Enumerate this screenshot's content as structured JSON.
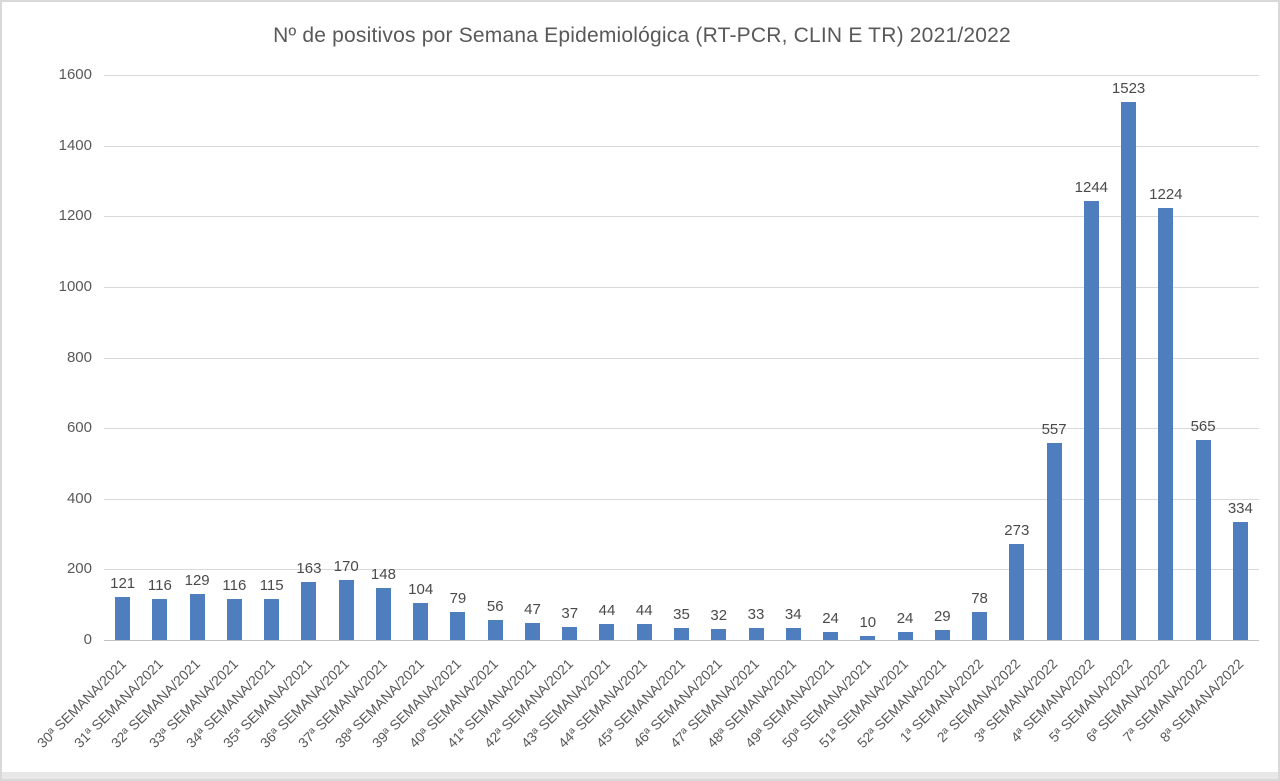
{
  "chart_data": {
    "type": "bar",
    "title": "Nº de positivos por Semana Epidemiológica (RT-PCR, CLIN E TR) 2021/2022",
    "categories": [
      "30ª SEMANA/2021",
      "31ª SEMANA/2021",
      "32ª SEMANA/2021",
      "33ª SEMANA/2021",
      "34ª SEMANA/2021",
      "35ª SEMANA/2021",
      "36ª SEMANA/2021",
      "37ª SEMANA/2021",
      "38ª SEMANA/2021",
      "39ª SEMANA/2021",
      "40ª SEMANA/2021",
      "41ª SEMANA/2021",
      "42ª SEMANA/2021",
      "43ª SEMANA/2021",
      "44ª SEMANA/2021",
      "45ª SEMANA/2021",
      "46ª SEMANA/2021",
      "47ª SEMANA/2021",
      "48ª SEMANA/2021",
      "49ª SEMANA/2021",
      "50ª SEMANA/2021",
      "51ª SEMANA/2021",
      "52ª SEMANA/2021",
      "1ª SEMANA/2022",
      "2ª SEMANA/2022",
      "3ª SEMANA/2022",
      "4ª SEMANA/2022",
      "5ª SEMANA/2022",
      "6ª SEMANA/2022",
      "7ª SEMANA/2022",
      "8ª SEMANA/2022"
    ],
    "values": [
      121,
      116,
      129,
      116,
      115,
      163,
      170,
      148,
      104,
      79,
      56,
      47,
      37,
      44,
      44,
      35,
      32,
      33,
      34,
      24,
      10,
      24,
      29,
      78,
      273,
      557,
      1244,
      1523,
      1224,
      565,
      334
    ],
    "xlabel": "",
    "ylabel": "",
    "y_ticks": [
      0,
      200,
      400,
      600,
      800,
      1000,
      1200,
      1400,
      1600
    ],
    "ylim": [
      0,
      1600
    ],
    "grid": true,
    "legend": "none",
    "colors": {
      "bar": "#4e7ebd",
      "title_text": "#595959",
      "axis_text": "#595959",
      "value_label_text": "#4a4a4a",
      "gridline": "#d9d9d9"
    }
  }
}
